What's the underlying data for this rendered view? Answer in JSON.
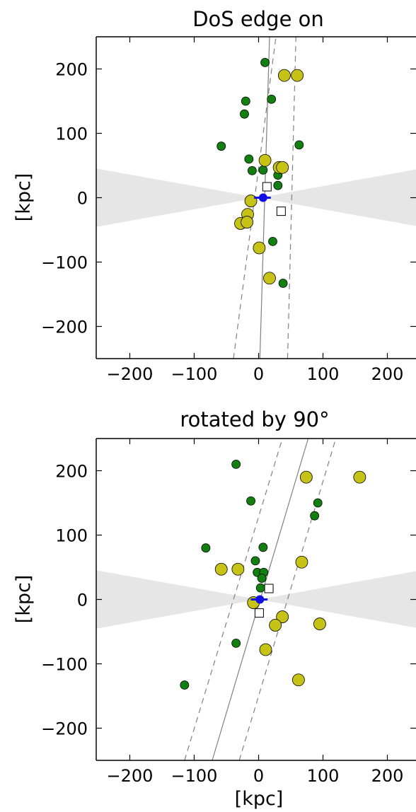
{
  "chart_data": [
    {
      "type": "scatter",
      "title": "DoS edge on",
      "xlabel": "",
      "ylabel": "[kpc]",
      "xlim": [
        -250,
        250
      ],
      "ylim": [
        -250,
        250
      ],
      "xticks": [
        "−200",
        "−100",
        "0",
        "100",
        "200"
      ],
      "yticks": [
        "200",
        "100",
        "0",
        "−100",
        "−200"
      ],
      "grid": false,
      "colors": {
        "green": "#118011",
        "yellow": "#c6c216",
        "host": "#1010e6",
        "grey_wedge": "#e6e6e6",
        "line": "#808080"
      },
      "wedge_slope": 0.18,
      "fit_line": {
        "x_at_ymin": 2,
        "x_at_ymax": 17
      },
      "fit_band": [
        {
          "x_at_ymin": -39,
          "x_at_ymax": 27
        },
        {
          "x_at_ymin": 45,
          "x_at_ymax": 58
        }
      ],
      "green": [
        [
          10,
          210
        ],
        [
          -20,
          150
        ],
        [
          -22,
          130
        ],
        [
          20,
          153
        ],
        [
          -58,
          80
        ],
        [
          63,
          82
        ],
        [
          -15,
          60
        ],
        [
          -10,
          42
        ],
        [
          7,
          43
        ],
        [
          30,
          35
        ],
        [
          30,
          19
        ],
        [
          22,
          -68
        ],
        [
          38,
          -133
        ]
      ],
      "yellow": [
        [
          40,
          190
        ],
        [
          60,
          190
        ],
        [
          10,
          58
        ],
        [
          32,
          47
        ],
        [
          37,
          47
        ],
        [
          -12,
          -5
        ],
        [
          -17,
          -26
        ],
        [
          -28,
          -40
        ],
        [
          -18,
          -38
        ],
        [
          1,
          -78
        ],
        [
          17,
          -125
        ]
      ],
      "squares": [
        [
          13,
          17
        ],
        [
          35,
          -21
        ]
      ],
      "host": {
        "x": 7,
        "y": 0,
        "dx_neg": -14,
        "dx_pos": 12
      }
    },
    {
      "type": "scatter",
      "title": "rotated by 90°",
      "xlabel": "[kpc]",
      "ylabel": "[kpc]",
      "xlim": [
        -250,
        250
      ],
      "ylim": [
        -250,
        250
      ],
      "xticks": [
        "−200",
        "−100",
        "0",
        "100",
        "200"
      ],
      "yticks": [
        "200",
        "100",
        "0",
        "−100",
        "−200"
      ],
      "grid": false,
      "wedge_slope": 0.18,
      "fit_line": {
        "x_at_ymin": -72,
        "x_at_ymax": 77
      },
      "fit_band": [
        {
          "x_at_ymin": -115,
          "x_at_ymax": 37
        },
        {
          "x_at_ymin": -30,
          "x_at_ymax": 120
        }
      ],
      "green": [
        [
          -35,
          210
        ],
        [
          -12,
          153
        ],
        [
          92,
          150
        ],
        [
          87,
          130
        ],
        [
          -82,
          80
        ],
        [
          7,
          81
        ],
        [
          -5,
          60
        ],
        [
          -2,
          42
        ],
        [
          8,
          42
        ],
        [
          5,
          33
        ],
        [
          3,
          18
        ],
        [
          -35,
          -68
        ],
        [
          -115,
          -133
        ]
      ],
      "yellow": [
        [
          74,
          190
        ],
        [
          157,
          190
        ],
        [
          67,
          58
        ],
        [
          -58,
          47
        ],
        [
          -32,
          47
        ],
        [
          -8,
          -5
        ],
        [
          37,
          -27
        ],
        [
          26,
          -40
        ],
        [
          95,
          -38
        ],
        [
          11,
          -78
        ],
        [
          62,
          -125
        ]
      ],
      "squares": [
        [
          16,
          17
        ],
        [
          1,
          -21
        ]
      ],
      "host": {
        "x": 2,
        "y": 0,
        "dx_neg": -14,
        "dx_pos": 12
      }
    }
  ]
}
